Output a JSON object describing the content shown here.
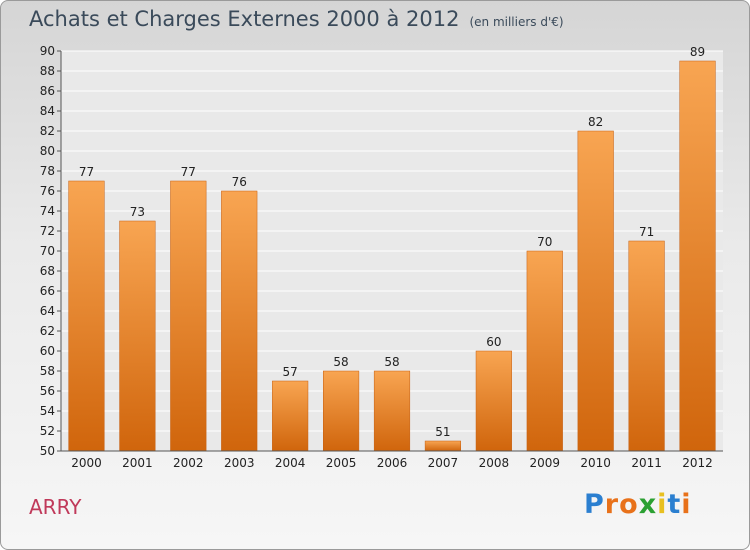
{
  "chart_data": {
    "type": "bar",
    "title": "Achats et Charges Externes 2000 à 2012",
    "subtitle": "(en milliers d'€)",
    "categories": [
      "2000",
      "2001",
      "2002",
      "2003",
      "2004",
      "2005",
      "2006",
      "2007",
      "2008",
      "2009",
      "2010",
      "2011",
      "2012"
    ],
    "values": [
      77,
      73,
      77,
      76,
      57,
      58,
      58,
      51,
      60,
      70,
      82,
      71,
      89
    ],
    "ylim": [
      50,
      90
    ],
    "yticks": [
      50,
      52,
      54,
      56,
      58,
      60,
      62,
      64,
      66,
      68,
      70,
      72,
      74,
      76,
      78,
      80,
      82,
      84,
      86,
      88,
      90
    ],
    "grid": true,
    "bar_color": "#ee8a30",
    "legend": "none"
  },
  "commune": "ARRY",
  "logo": {
    "letters": [
      "P",
      "r",
      "o",
      "x",
      "i",
      "t",
      "i"
    ],
    "colors": [
      "#2b7fd0",
      "#e8711a",
      "#e8711a",
      "#2ba032",
      "#e8c020",
      "#2b7fd0",
      "#e8711a"
    ]
  }
}
